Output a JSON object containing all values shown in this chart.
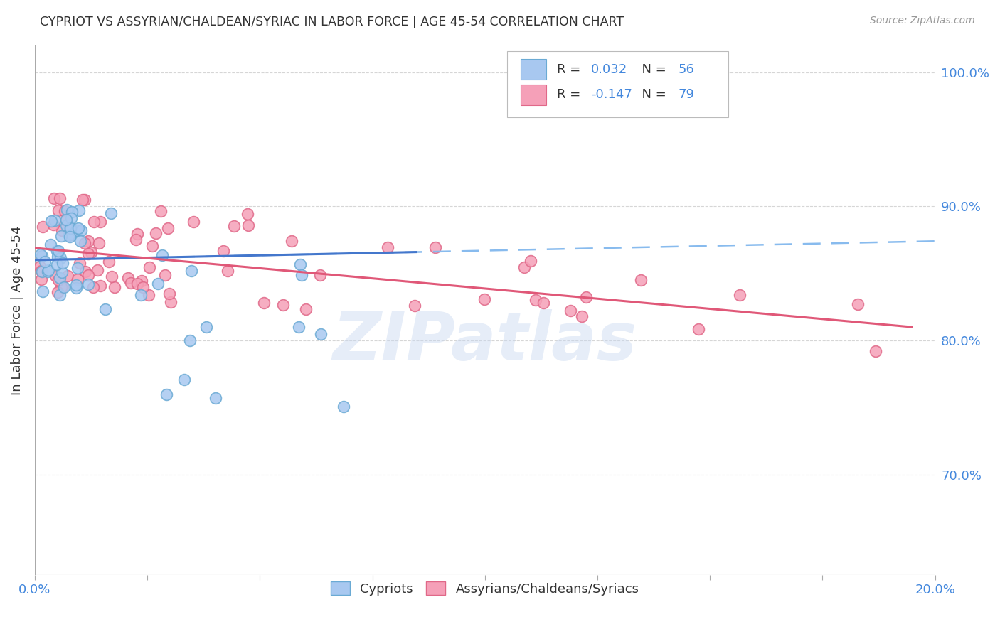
{
  "title": "CYPRIOT VS ASSYRIAN/CHALDEAN/SYRIAC IN LABOR FORCE | AGE 45-54 CORRELATION CHART",
  "source": "Source: ZipAtlas.com",
  "ylabel": "In Labor Force | Age 45-54",
  "xlim": [
    0.0,
    0.2
  ],
  "ylim": [
    0.625,
    1.02
  ],
  "xticks": [
    0.0,
    0.025,
    0.05,
    0.075,
    0.1,
    0.125,
    0.15,
    0.175,
    0.2
  ],
  "yticks": [
    0.7,
    0.8,
    0.9,
    1.0
  ],
  "yticklabels_right": [
    "70.0%",
    "80.0%",
    "90.0%",
    "100.0%"
  ],
  "legend_r1": "R = ",
  "legend_v1": "0.032",
  "legend_n1_label": "N = ",
  "legend_n1_val": "56",
  "legend_r2": "R = ",
  "legend_v2": "-0.147",
  "legend_n2_label": "N = ",
  "legend_n2_val": "79",
  "cypriot_color": "#a8c8f0",
  "cypriot_edge": "#6aaad4",
  "assyrian_color": "#f5a0b8",
  "assyrian_edge": "#e06888",
  "trend_blue_solid": "#4477cc",
  "trend_pink_solid": "#e05878",
  "trend_blue_dashed": "#88bbee",
  "grid_color": "#cccccc",
  "watermark": "ZIPatlas",
  "watermark_color": "#c8d8f0",
  "text_color": "#333333",
  "blue_label_color": "#4488dd",
  "tick_color": "#4488dd",
  "background_color": "#ffffff",
  "source_color": "#999999"
}
